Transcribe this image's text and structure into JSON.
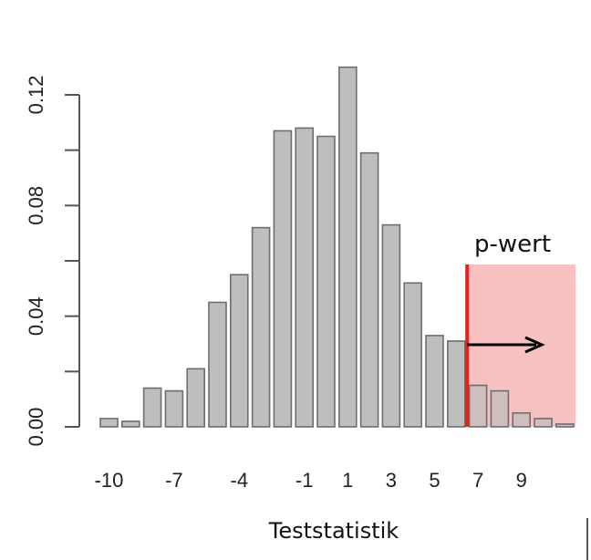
{
  "chart_data": {
    "type": "bar",
    "title": "",
    "xlabel": "Teststatistik",
    "ylabel": "",
    "bin_centers": [
      -10,
      -9,
      -8,
      -7,
      -6,
      -5,
      -4,
      -3,
      -2,
      -1,
      0,
      1,
      2,
      3,
      4,
      5,
      6,
      7,
      8,
      9,
      10,
      11
    ],
    "values": [
      0.003,
      0.002,
      0.014,
      0.013,
      0.021,
      0.045,
      0.055,
      0.072,
      0.107,
      0.108,
      0.105,
      0.13,
      0.099,
      0.073,
      0.052,
      0.033,
      0.031,
      0.015,
      0.013,
      0.005,
      0.003,
      0.001
    ],
    "x_tick_labels": [
      "-10",
      "-7",
      "-4",
      "-1",
      "1",
      "3",
      "5",
      "7",
      "9"
    ],
    "x_tick_values": [
      -10,
      -7,
      -4,
      -1,
      1,
      3,
      5,
      7,
      9
    ],
    "y_ticks": [
      "0.00",
      "0.04",
      "0.08",
      "0.12"
    ],
    "y_tick_values": [
      0,
      0.04,
      0.08,
      0.12
    ],
    "ylim": [
      0,
      0.13
    ],
    "grid": false,
    "annotation": {
      "text": "p-wert",
      "observed_value": 6.5,
      "line_color": "#e8201a",
      "region_color": "#f4b6b5"
    }
  }
}
